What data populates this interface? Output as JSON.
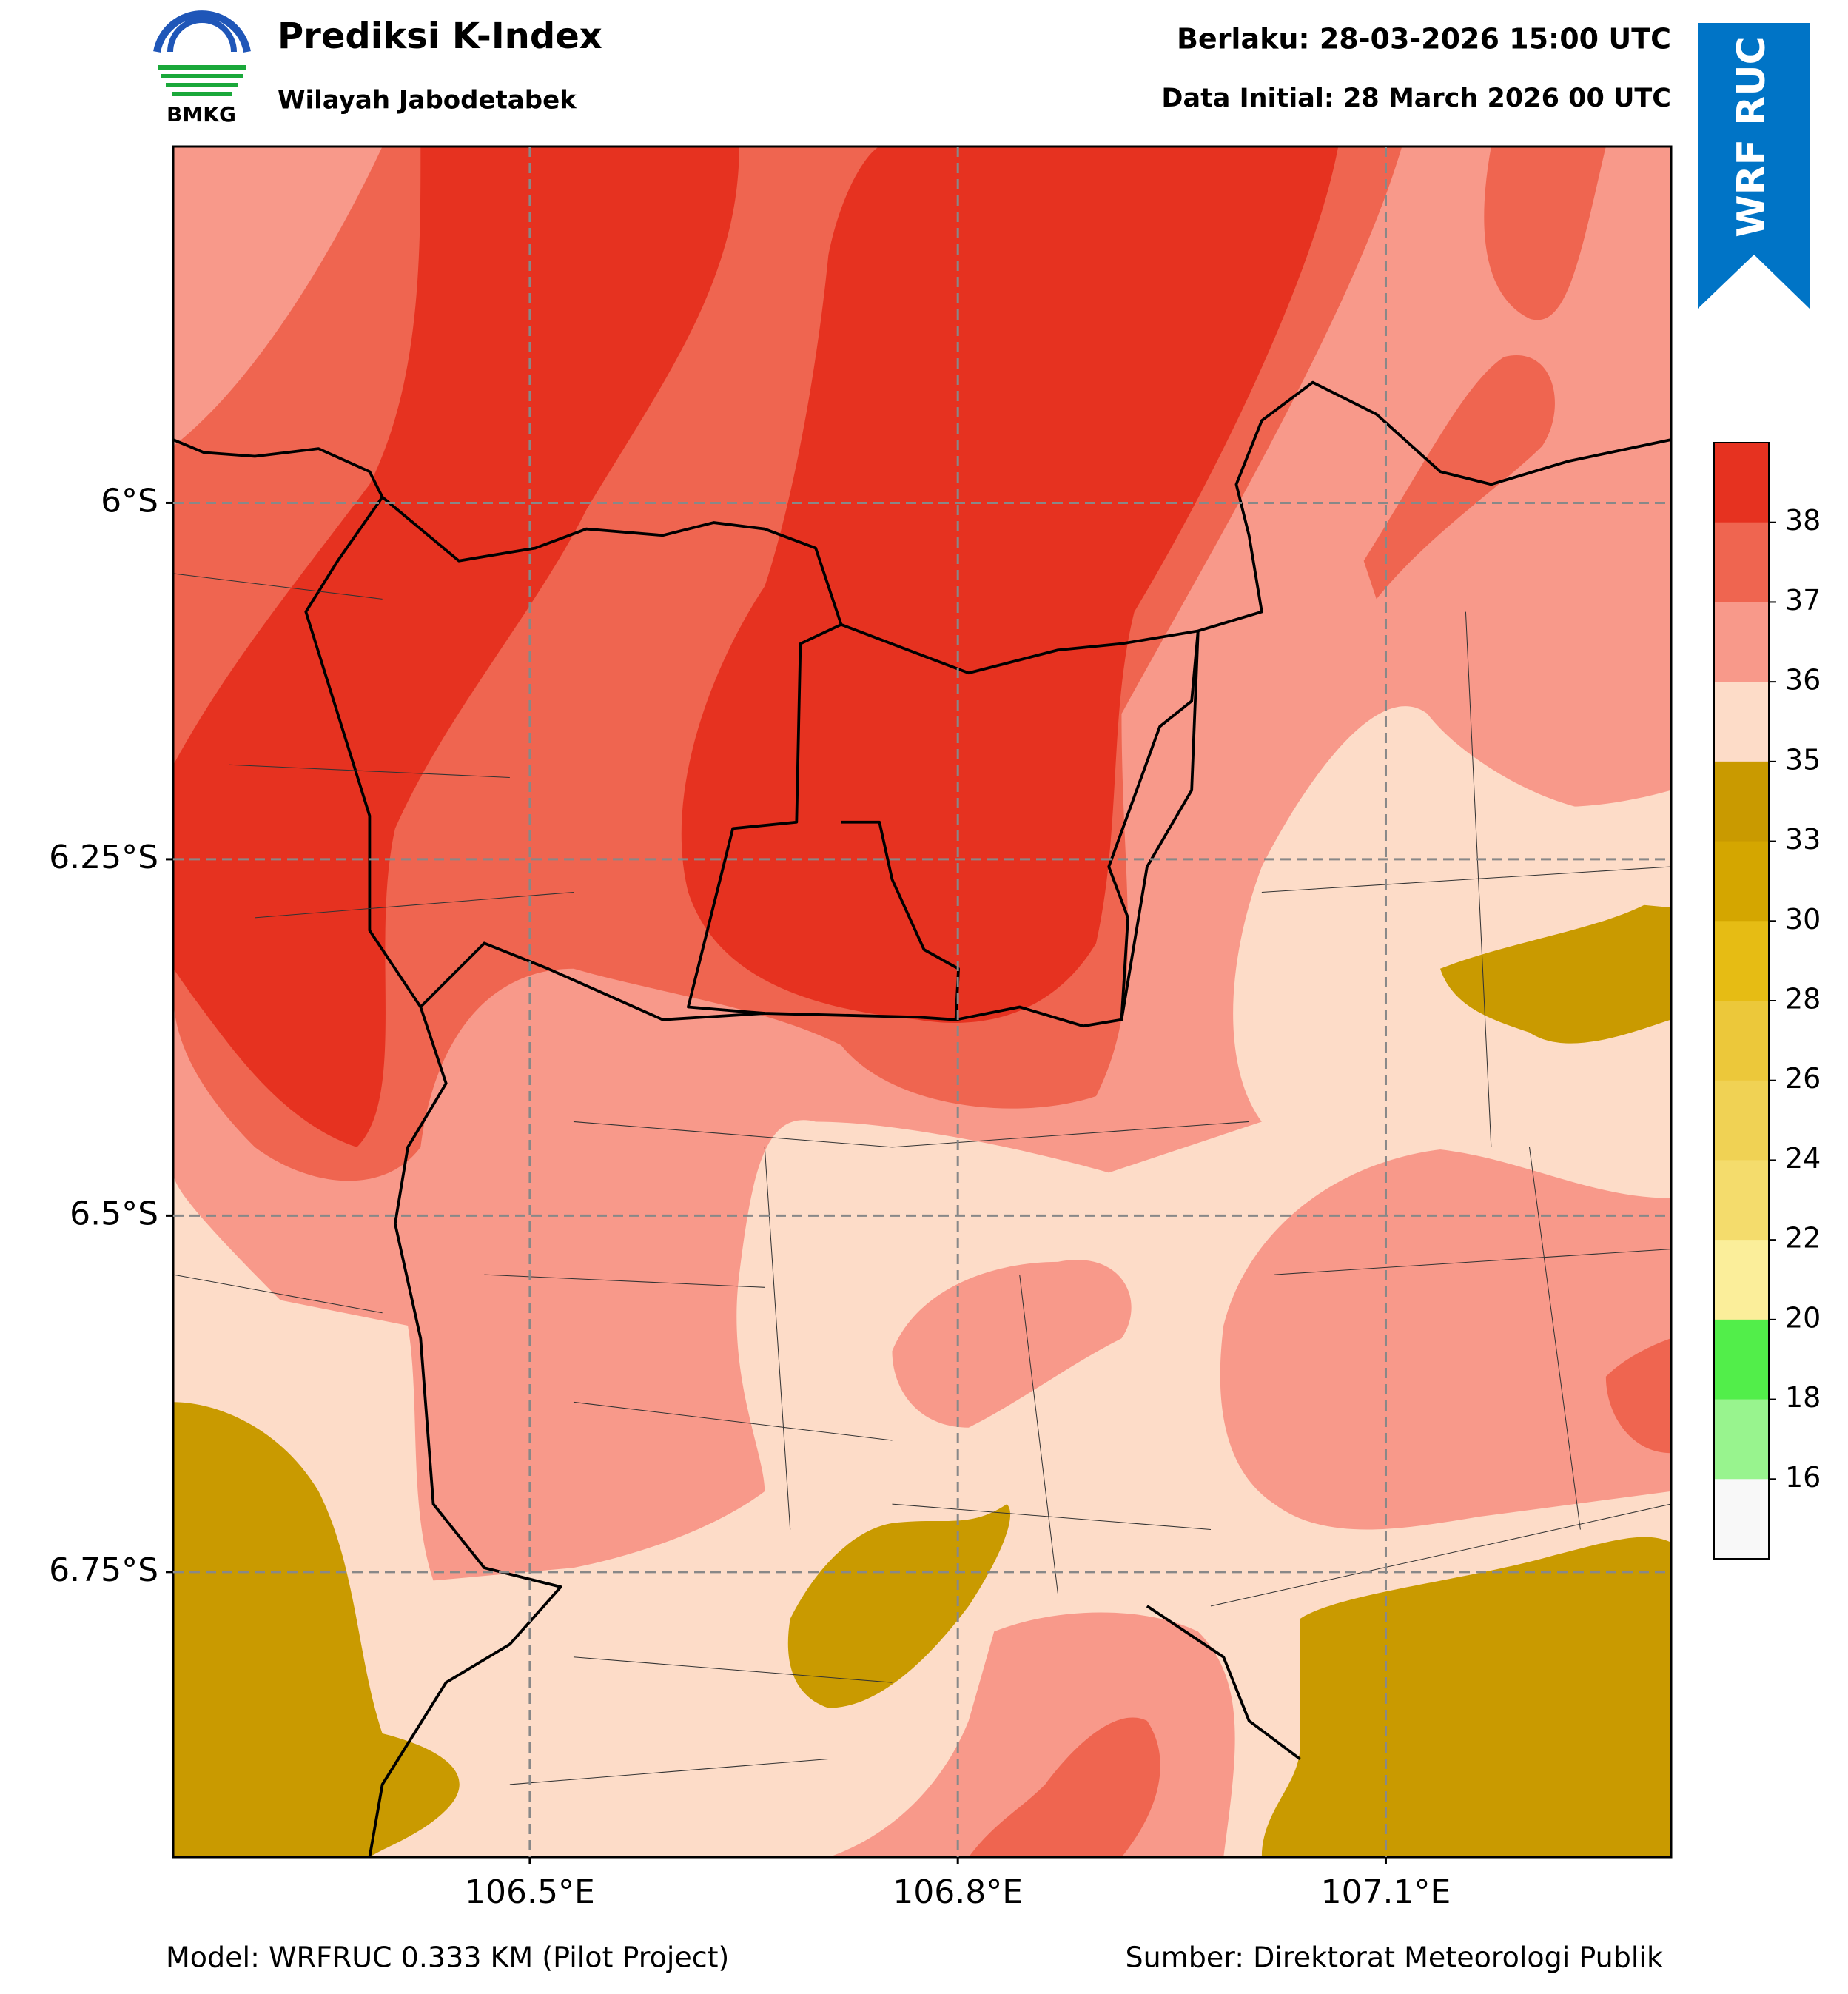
{
  "header": {
    "title": "Prediksi K-Index",
    "subtitle": "Wilayah Jabodetabek",
    "logo_text": "BMKG",
    "valid": "Berlaku: 28-03-2026 15:00 UTC",
    "initial": "Data Initial: 28 March 2026 00 UTC",
    "badge": "WRF RUC"
  },
  "map": {
    "xlim": [
      106.25,
      107.3
    ],
    "ylim": [
      -6.95,
      -5.75
    ],
    "xticks": [
      {
        "value": 106.5,
        "label": "106.5°E"
      },
      {
        "value": 106.8,
        "label": "106.8°E"
      },
      {
        "value": 107.1,
        "label": "107.1°E"
      }
    ],
    "yticks": [
      {
        "value": -6,
        "label": "6°S"
      },
      {
        "value": -6.25,
        "label": "6.25°S"
      },
      {
        "value": -6.5,
        "label": "6.5°S"
      },
      {
        "value": -6.75,
        "label": "6.75°S"
      }
    ],
    "grid": true
  },
  "colorbar": {
    "ticks": [
      38,
      37,
      36,
      35,
      33,
      30,
      28,
      26,
      24,
      22,
      20,
      18,
      16
    ],
    "colors": [
      "#e63220",
      "#ef6550",
      "#f8998a",
      "#fddcc8",
      "#c99a00",
      "#d4a600",
      "#e6bc14",
      "#ecc83a",
      "#f0d254",
      "#f4dc6c",
      "#fbee9a",
      "#52ee4a",
      "#98f48e",
      "#f8f8f8"
    ]
  },
  "footer": {
    "model": "Model: WRFRUC 0.333 KM (Pilot Project)",
    "source": "Sumber: Direktorat Meteorologi Publik"
  }
}
